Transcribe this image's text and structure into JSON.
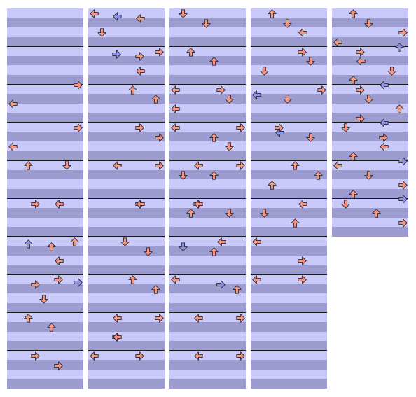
{
  "palette": {
    "stripe_light": "#c9c9f9",
    "stripe_dark": "#9c9cd0",
    "measure_line": "#1a1a1a",
    "note_red": "#f49585",
    "note_blue": "#8e93ea",
    "note_outline": "#2a2a2a"
  },
  "icons": {
    "left": "left-arrow-icon",
    "down": "down-arrow-icon",
    "up": "up-arrow-icon",
    "right": "right-arrow-icon"
  },
  "chart": {
    "lanes": [
      "left",
      "down",
      "up",
      "right"
    ],
    "rows_per_measure": 4,
    "columns": [
      {
        "measures": 10,
        "notes": [
          {
            "measure": 2,
            "beat": 0.0,
            "dir": "right",
            "color": "red"
          },
          {
            "measure": 2,
            "beat": 2.0,
            "dir": "left",
            "color": "red"
          },
          {
            "measure": 3,
            "beat": 0.5,
            "dir": "right",
            "color": "red"
          },
          {
            "measure": 3,
            "beat": 2.5,
            "dir": "left",
            "color": "red"
          },
          {
            "measure": 4,
            "beat": 0.5,
            "dir": "down",
            "color": "red"
          },
          {
            "measure": 4,
            "beat": 0.5,
            "dir": "up",
            "color": "red"
          },
          {
            "measure": 5,
            "beat": 0.5,
            "dir": "left",
            "color": "red"
          },
          {
            "measure": 5,
            "beat": 0.5,
            "dir": "right",
            "color": "red"
          },
          {
            "measure": 6,
            "beat": 0.5,
            "dir": "up",
            "color": "red"
          },
          {
            "measure": 6,
            "beat": 0.75,
            "dir": "up",
            "color": "blue"
          },
          {
            "measure": 6,
            "beat": 1.0,
            "dir": "up",
            "color": "red"
          },
          {
            "measure": 6,
            "beat": 2.5,
            "dir": "left",
            "color": "red"
          },
          {
            "measure": 7,
            "beat": 0.5,
            "dir": "right",
            "color": "red"
          },
          {
            "measure": 7,
            "beat": 0.75,
            "dir": "right",
            "color": "blue"
          },
          {
            "measure": 7,
            "beat": 1.0,
            "dir": "right",
            "color": "red"
          },
          {
            "measure": 7,
            "beat": 2.5,
            "dir": "down",
            "color": "red"
          },
          {
            "measure": 8,
            "beat": 0.5,
            "dir": "up",
            "color": "red"
          },
          {
            "measure": 8,
            "beat": 1.5,
            "dir": "up",
            "color": "red"
          },
          {
            "measure": 9,
            "beat": 0.5,
            "dir": "right",
            "color": "red"
          },
          {
            "measure": 9,
            "beat": 1.5,
            "dir": "right",
            "color": "red"
          }
        ]
      },
      {
        "measures": 10,
        "notes": [
          {
            "measure": 0,
            "beat": 0.5,
            "dir": "left",
            "color": "red"
          },
          {
            "measure": 0,
            "beat": 0.75,
            "dir": "left",
            "color": "blue"
          },
          {
            "measure": 0,
            "beat": 1.0,
            "dir": "left",
            "color": "red"
          },
          {
            "measure": 0,
            "beat": 2.5,
            "dir": "down",
            "color": "red"
          },
          {
            "measure": 1,
            "beat": 0.5,
            "dir": "right",
            "color": "red"
          },
          {
            "measure": 1,
            "beat": 0.75,
            "dir": "right",
            "color": "blue"
          },
          {
            "measure": 1,
            "beat": 1.0,
            "dir": "right",
            "color": "red"
          },
          {
            "measure": 1,
            "beat": 2.5,
            "dir": "left",
            "color": "red"
          },
          {
            "measure": 2,
            "beat": 0.5,
            "dir": "up",
            "color": "red"
          },
          {
            "measure": 2,
            "beat": 1.5,
            "dir": "up",
            "color": "red"
          },
          {
            "measure": 3,
            "beat": 0.5,
            "dir": "right",
            "color": "red"
          },
          {
            "measure": 3,
            "beat": 1.5,
            "dir": "right",
            "color": "red"
          },
          {
            "measure": 4,
            "beat": 0.5,
            "dir": "left",
            "color": "red"
          },
          {
            "measure": 4,
            "beat": 0.5,
            "dir": "right",
            "color": "red"
          },
          {
            "measure": 5,
            "beat": 0.5,
            "dir": "right",
            "color": "red"
          },
          {
            "measure": 5,
            "beat": 0.5,
            "dir": "left",
            "color": "red"
          },
          {
            "measure": 6,
            "beat": 0.5,
            "dir": "down",
            "color": "red"
          },
          {
            "measure": 6,
            "beat": 1.5,
            "dir": "down",
            "color": "red"
          },
          {
            "measure": 7,
            "beat": 0.5,
            "dir": "up",
            "color": "red"
          },
          {
            "measure": 7,
            "beat": 1.5,
            "dir": "up",
            "color": "red"
          },
          {
            "measure": 8,
            "beat": 0.5,
            "dir": "left",
            "color": "red"
          },
          {
            "measure": 8,
            "beat": 0.5,
            "dir": "right",
            "color": "red"
          },
          {
            "measure": 8,
            "beat": 2.5,
            "dir": "right",
            "color": "red"
          },
          {
            "measure": 8,
            "beat": 2.5,
            "dir": "left",
            "color": "red"
          },
          {
            "measure": 9,
            "beat": 0.5,
            "dir": "left",
            "color": "red"
          },
          {
            "measure": 9,
            "beat": 0.5,
            "dir": "right",
            "color": "red"
          }
        ]
      },
      {
        "measures": 10,
        "notes": [
          {
            "measure": 0,
            "beat": 0.5,
            "dir": "down",
            "color": "red"
          },
          {
            "measure": 0,
            "beat": 1.5,
            "dir": "down",
            "color": "red"
          },
          {
            "measure": 1,
            "beat": 0.5,
            "dir": "up",
            "color": "red"
          },
          {
            "measure": 1,
            "beat": 1.5,
            "dir": "up",
            "color": "red"
          },
          {
            "measure": 2,
            "beat": 0.5,
            "dir": "left",
            "color": "red"
          },
          {
            "measure": 2,
            "beat": 0.5,
            "dir": "right",
            "color": "red"
          },
          {
            "measure": 2,
            "beat": 1.5,
            "dir": "down",
            "color": "red"
          },
          {
            "measure": 2,
            "beat": 2.5,
            "dir": "left",
            "color": "red"
          },
          {
            "measure": 3,
            "beat": 0.5,
            "dir": "right",
            "color": "red"
          },
          {
            "measure": 3,
            "beat": 0.5,
            "dir": "left",
            "color": "red"
          },
          {
            "measure": 3,
            "beat": 1.5,
            "dir": "up",
            "color": "red"
          },
          {
            "measure": 3,
            "beat": 2.5,
            "dir": "down",
            "color": "red"
          },
          {
            "measure": 4,
            "beat": 0.5,
            "dir": "left",
            "color": "red"
          },
          {
            "measure": 4,
            "beat": 0.5,
            "dir": "right",
            "color": "red"
          },
          {
            "measure": 4,
            "beat": 1.5,
            "dir": "down",
            "color": "red"
          },
          {
            "measure": 4,
            "beat": 1.5,
            "dir": "up",
            "color": "red"
          },
          {
            "measure": 5,
            "beat": 0.5,
            "dir": "right",
            "color": "red"
          },
          {
            "measure": 5,
            "beat": 0.5,
            "dir": "left",
            "color": "red"
          },
          {
            "measure": 5,
            "beat": 1.5,
            "dir": "down",
            "color": "red"
          },
          {
            "measure": 5,
            "beat": 1.5,
            "dir": "up",
            "color": "red"
          },
          {
            "measure": 6,
            "beat": 0.5,
            "dir": "left",
            "color": "red"
          },
          {
            "measure": 6,
            "beat": 1.0,
            "dir": "down",
            "color": "blue"
          },
          {
            "measure": 6,
            "beat": 1.5,
            "dir": "up",
            "color": "red"
          },
          {
            "measure": 7,
            "beat": 0.5,
            "dir": "left",
            "color": "red"
          },
          {
            "measure": 7,
            "beat": 1.0,
            "dir": "right",
            "color": "blue"
          },
          {
            "measure": 7,
            "beat": 1.5,
            "dir": "up",
            "color": "red"
          },
          {
            "measure": 8,
            "beat": 0.5,
            "dir": "left",
            "color": "red"
          },
          {
            "measure": 8,
            "beat": 0.5,
            "dir": "right",
            "color": "red"
          },
          {
            "measure": 9,
            "beat": 0.5,
            "dir": "left",
            "color": "red"
          },
          {
            "measure": 9,
            "beat": 0.5,
            "dir": "right",
            "color": "red"
          }
        ]
      },
      {
        "measures": 10,
        "notes": [
          {
            "measure": 0,
            "beat": 0.5,
            "dir": "up",
            "color": "red"
          },
          {
            "measure": 0,
            "beat": 1.5,
            "dir": "down",
            "color": "red"
          },
          {
            "measure": 0,
            "beat": 2.5,
            "dir": "left",
            "color": "red"
          },
          {
            "measure": 1,
            "beat": 0.5,
            "dir": "right",
            "color": "red"
          },
          {
            "measure": 1,
            "beat": 1.5,
            "dir": "down",
            "color": "red"
          },
          {
            "measure": 1,
            "beat": 2.5,
            "dir": "down",
            "color": "red"
          },
          {
            "measure": 2,
            "beat": 0.5,
            "dir": "right",
            "color": "red"
          },
          {
            "measure": 2,
            "beat": 1.0,
            "dir": "left",
            "color": "blue"
          },
          {
            "measure": 2,
            "beat": 1.5,
            "dir": "down",
            "color": "red"
          },
          {
            "measure": 3,
            "beat": 0.5,
            "dir": "right",
            "color": "red"
          },
          {
            "measure": 3,
            "beat": 1.0,
            "dir": "left",
            "color": "blue"
          },
          {
            "measure": 3,
            "beat": 1.5,
            "dir": "down",
            "color": "red"
          },
          {
            "measure": 4,
            "beat": 0.5,
            "dir": "up",
            "color": "red"
          },
          {
            "measure": 4,
            "beat": 1.5,
            "dir": "up",
            "color": "red"
          },
          {
            "measure": 4,
            "beat": 2.5,
            "dir": "up",
            "color": "red"
          },
          {
            "measure": 5,
            "beat": 0.5,
            "dir": "left",
            "color": "red"
          },
          {
            "measure": 5,
            "beat": 1.5,
            "dir": "down",
            "color": "red"
          },
          {
            "measure": 5,
            "beat": 2.5,
            "dir": "up",
            "color": "red"
          },
          {
            "measure": 6,
            "beat": 0.5,
            "dir": "left",
            "color": "red"
          },
          {
            "measure": 6,
            "beat": 2.5,
            "dir": "right",
            "color": "red"
          },
          {
            "measure": 7,
            "beat": 0.5,
            "dir": "left",
            "color": "red"
          },
          {
            "measure": 7,
            "beat": 0.5,
            "dir": "right",
            "color": "red"
          }
        ]
      },
      {
        "measures": 6,
        "notes": [
          {
            "measure": 0,
            "beat": 0.5,
            "dir": "up",
            "color": "red"
          },
          {
            "measure": 0,
            "beat": 1.5,
            "dir": "down",
            "color": "red"
          },
          {
            "measure": 0,
            "beat": 2.5,
            "dir": "right",
            "color": "red"
          },
          {
            "measure": 0,
            "beat": 3.5,
            "dir": "left",
            "color": "red"
          },
          {
            "measure": 1,
            "beat": 0.0,
            "dir": "up",
            "color": "blue"
          },
          {
            "measure": 1,
            "beat": 0.5,
            "dir": "right",
            "color": "red"
          },
          {
            "measure": 1,
            "beat": 1.5,
            "dir": "left",
            "color": "red"
          },
          {
            "measure": 1,
            "beat": 2.5,
            "dir": "down",
            "color": "red"
          },
          {
            "measure": 1,
            "beat": 3.5,
            "dir": "up",
            "color": "red"
          },
          {
            "measure": 2,
            "beat": 0.0,
            "dir": "left",
            "color": "blue"
          },
          {
            "measure": 2,
            "beat": 0.5,
            "dir": "right",
            "color": "red"
          },
          {
            "measure": 2,
            "beat": 1.5,
            "dir": "down",
            "color": "red"
          },
          {
            "measure": 2,
            "beat": 2.5,
            "dir": "up",
            "color": "red"
          },
          {
            "measure": 2,
            "beat": 3.5,
            "dir": "right",
            "color": "red"
          },
          {
            "measure": 3,
            "beat": 0.0,
            "dir": "left",
            "color": "blue"
          },
          {
            "measure": 3,
            "beat": 0.5,
            "dir": "down",
            "color": "red"
          },
          {
            "measure": 3,
            "beat": 1.5,
            "dir": "right",
            "color": "red"
          },
          {
            "measure": 3,
            "beat": 2.5,
            "dir": "left",
            "color": "red"
          },
          {
            "measure": 3,
            "beat": 3.5,
            "dir": "up",
            "color": "red"
          },
          {
            "measure": 4,
            "beat": 0.0,
            "dir": "right",
            "color": "blue"
          },
          {
            "measure": 4,
            "beat": 0.5,
            "dir": "left",
            "color": "red"
          },
          {
            "measure": 4,
            "beat": 1.5,
            "dir": "down",
            "color": "red"
          },
          {
            "measure": 4,
            "beat": 2.5,
            "dir": "right",
            "color": "red"
          },
          {
            "measure": 4,
            "beat": 3.5,
            "dir": "up",
            "color": "red"
          },
          {
            "measure": 5,
            "beat": 0.0,
            "dir": "right",
            "color": "blue"
          },
          {
            "measure": 5,
            "beat": 0.5,
            "dir": "down",
            "color": "red"
          },
          {
            "measure": 5,
            "beat": 1.5,
            "dir": "up",
            "color": "red"
          },
          {
            "measure": 5,
            "beat": 2.5,
            "dir": "right",
            "color": "red"
          }
        ]
      }
    ]
  }
}
